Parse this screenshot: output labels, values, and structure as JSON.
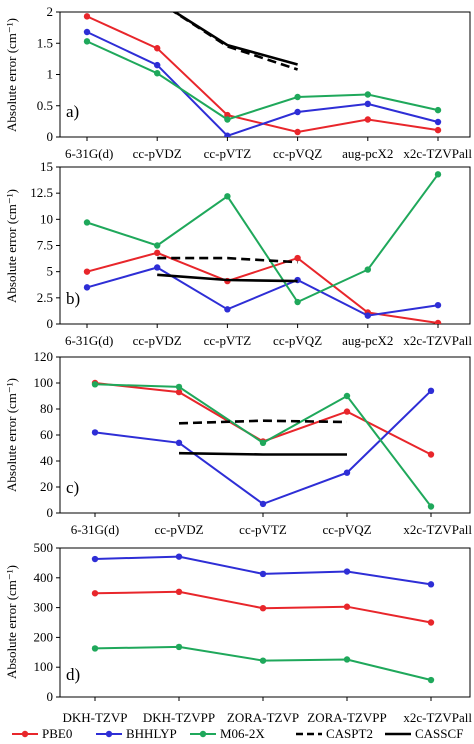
{
  "chart_data": [
    {
      "type": "line",
      "panel_label": "a)",
      "ylabel": "Absolute error (cm⁻¹)",
      "ylim": [
        0,
        2
      ],
      "yticks": [
        "0",
        "0.5",
        "1",
        "1.5",
        "2"
      ],
      "categories": [
        "6-31G(d)",
        "cc-pVDZ",
        "cc-pVTZ",
        "cc-pVQZ",
        "aug-pcX2",
        "x2c-TZVPall"
      ],
      "series": [
        {
          "name": "PBE0",
          "color": "#e8262b",
          "values": [
            1.93,
            1.42,
            0.35,
            0.08,
            0.28,
            0.11
          ]
        },
        {
          "name": "BHHLYP",
          "color": "#2e2ed6",
          "values": [
            1.68,
            1.15,
            0.02,
            0.4,
            0.53,
            0.24
          ]
        },
        {
          "name": "M06-2X",
          "color": "#1fa85b",
          "values": [
            1.53,
            1.02,
            0.28,
            0.64,
            0.68,
            0.43
          ]
        },
        {
          "name": "CASPT2",
          "style": "dashed",
          "values": [
            null,
            2.18,
            1.45,
            1.08,
            null,
            null
          ]
        },
        {
          "name": "CASSCF",
          "style": "solid-black",
          "values": [
            null,
            2.18,
            1.47,
            1.16,
            null,
            null
          ]
        }
      ]
    },
    {
      "type": "line",
      "panel_label": "b)",
      "ylabel": "Absolute error (cm⁻¹)",
      "ylim": [
        0,
        15
      ],
      "yticks": [
        "0",
        "2.5",
        "5",
        "7.5",
        "10",
        "12.5",
        "15"
      ],
      "categories": [
        "6-31G(d)",
        "cc-pVDZ",
        "cc-pVTZ",
        "cc-pVQZ",
        "aug-pcX2",
        "x2c-TZVPall"
      ],
      "series": [
        {
          "name": "PBE0",
          "color": "#e8262b",
          "values": [
            5.0,
            6.8,
            4.1,
            6.3,
            1.1,
            0.1
          ]
        },
        {
          "name": "BHHLYP",
          "color": "#2e2ed6",
          "values": [
            3.5,
            5.4,
            1.4,
            4.2,
            0.8,
            1.8
          ]
        },
        {
          "name": "M06-2X",
          "color": "#1fa85b",
          "values": [
            9.7,
            7.5,
            12.2,
            2.1,
            5.2,
            14.3
          ]
        },
        {
          "name": "CASPT2",
          "style": "dashed",
          "values": [
            null,
            6.3,
            6.3,
            5.9,
            null,
            null
          ]
        },
        {
          "name": "CASSCF",
          "style": "solid-black",
          "values": [
            null,
            4.7,
            4.2,
            4.1,
            null,
            null
          ]
        }
      ]
    },
    {
      "type": "line",
      "panel_label": "c)",
      "ylabel": "Absolute error (cm⁻¹)",
      "ylim": [
        0,
        120
      ],
      "yticks": [
        "0",
        "20",
        "40",
        "60",
        "80",
        "100",
        "120"
      ],
      "categories": [
        "6-31G(d)",
        "cc-pVDZ",
        "cc-pVTZ",
        "cc-pVQZ",
        "x2c-TZVPall"
      ],
      "series": [
        {
          "name": "PBE0",
          "color": "#e8262b",
          "values": [
            100,
            93,
            55,
            78,
            45
          ]
        },
        {
          "name": "BHHLYP",
          "color": "#2e2ed6",
          "values": [
            62,
            54,
            7,
            31,
            94
          ]
        },
        {
          "name": "M06-2X",
          "color": "#1fa85b",
          "values": [
            99,
            97,
            54,
            90,
            5
          ]
        },
        {
          "name": "CASPT2",
          "style": "dashed",
          "values": [
            null,
            69,
            71,
            70,
            null
          ]
        },
        {
          "name": "CASSCF",
          "style": "solid-black",
          "values": [
            null,
            46,
            45,
            45,
            null
          ]
        }
      ]
    },
    {
      "type": "line",
      "panel_label": "d)",
      "ylabel": "Absolute error (cm⁻¹)",
      "ylim": [
        0,
        500
      ],
      "yticks": [
        "0",
        "100",
        "200",
        "300",
        "400",
        "500"
      ],
      "categories": [
        "DKH-TZVP",
        "DKH-TZVPP",
        "ZORA-TZVP",
        "ZORA-TZVPP",
        "x2c-TZVPall"
      ],
      "series": [
        {
          "name": "PBE0",
          "color": "#e8262b",
          "values": [
            348,
            353,
            298,
            303,
            250
          ]
        },
        {
          "name": "BHHLYP",
          "color": "#2e2ed6",
          "values": [
            463,
            471,
            413,
            421,
            378
          ]
        },
        {
          "name": "M06-2X",
          "color": "#1fa85b",
          "values": [
            163,
            168,
            122,
            126,
            57
          ]
        }
      ]
    }
  ],
  "legend": [
    {
      "name": "PBE0",
      "color": "#e8262b",
      "style": "marker"
    },
    {
      "name": "BHHLYP",
      "color": "#2e2ed6",
      "style": "marker"
    },
    {
      "name": "M06-2X",
      "color": "#1fa85b",
      "style": "marker"
    },
    {
      "name": "CASPT2",
      "color": "#000000",
      "style": "dashed"
    },
    {
      "name": "CASSCF",
      "color": "#000000",
      "style": "solid"
    }
  ]
}
